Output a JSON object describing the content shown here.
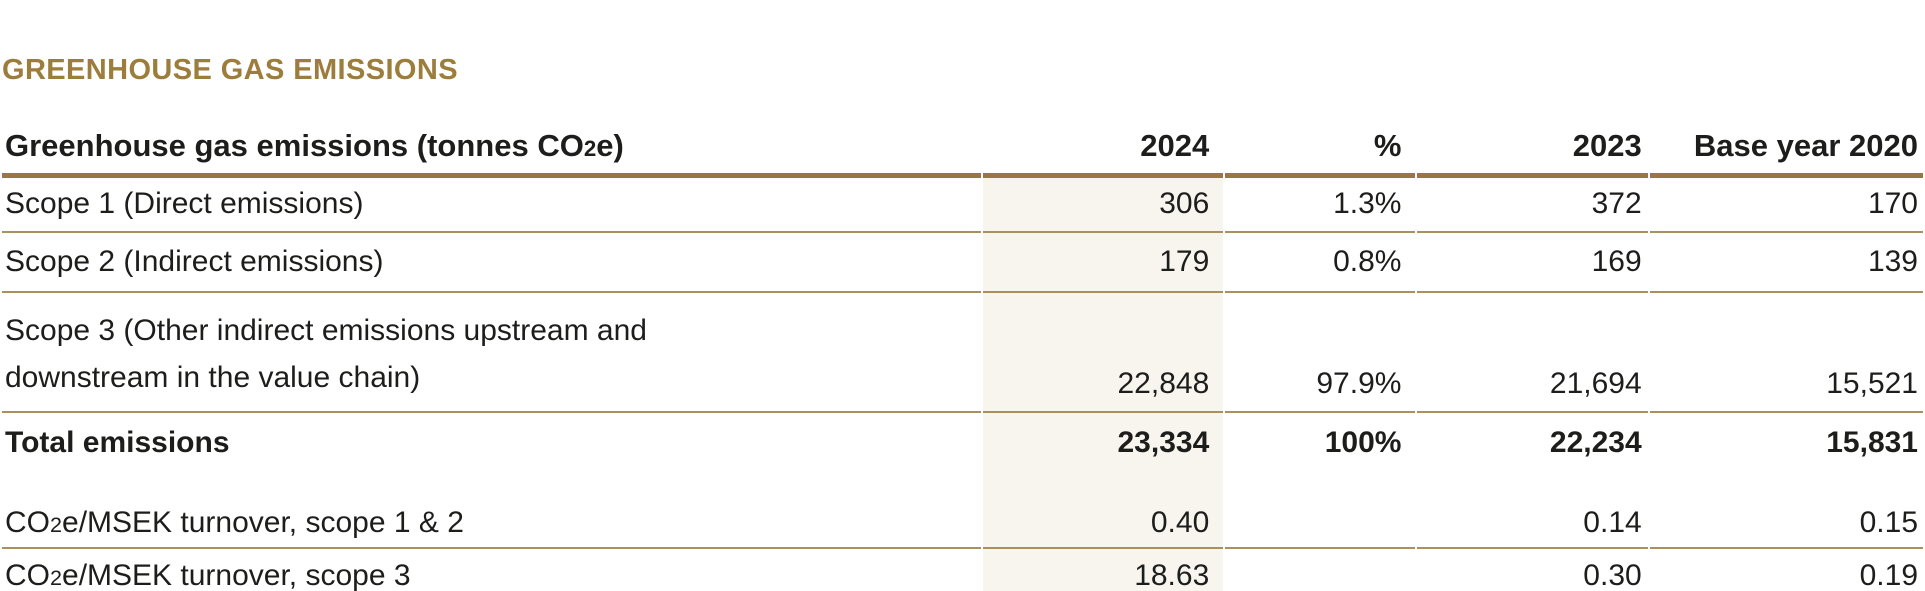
{
  "section": {
    "title": "GREENHOUSE GAS EMISSIONS"
  },
  "colors": {
    "accent_gold": "#9d7d3c",
    "rule_thick": "#97783f",
    "rule_thin": "#a9905c",
    "highlight_column": "#f8f4ee"
  },
  "table": {
    "header": {
      "label_pre": "Greenhouse gas emissions (tonnes CO",
      "label_sub": "2",
      "label_post": "e)",
      "columns": [
        "2024",
        "%",
        "2023",
        "Base year 2020"
      ]
    },
    "rows": [
      {
        "label": "Scope 1 (Direct emissions)",
        "y2024": "306",
        "pct": "1.3%",
        "y2023": "372",
        "base2020": "170"
      },
      {
        "label": "Scope 2 (Indirect emissions)",
        "y2024": "179",
        "pct": "0.8%",
        "y2023": "169",
        "base2020": "139"
      },
      {
        "label_line1": "Scope 3 (Other indirect emissions upstream and",
        "label_line2": "downstream in the value chain)",
        "y2024": "22,848",
        "pct": "97.9%",
        "y2023": "21,694",
        "base2020": "15,521"
      },
      {
        "label": "Total emissions",
        "y2024": "23,334",
        "pct": "100%",
        "y2023": "22,234",
        "base2020": "15,831"
      },
      {
        "label_pre": "CO",
        "label_sub": "2",
        "label_post": "e/MSEK turnover, scope 1 & 2",
        "y2024": "0.40",
        "pct": "",
        "y2023": "0.14",
        "base2020": "0.15"
      },
      {
        "label_pre": "CO",
        "label_sub": "2",
        "label_post": "e/MSEK turnover, scope 3",
        "y2024": "18.63",
        "pct": "",
        "y2023": "0.30",
        "base2020": "0.19"
      }
    ]
  }
}
